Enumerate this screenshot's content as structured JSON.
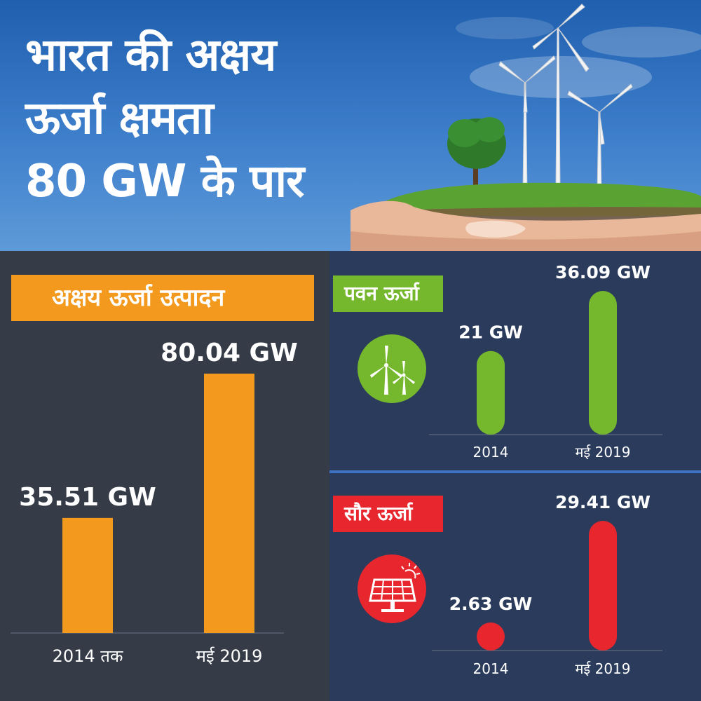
{
  "header": {
    "title_lines": [
      "भारत की अक्षय",
      "ऊर्जा क्षमता",
      "80 GW के पार"
    ]
  },
  "colors": {
    "total": "#f39a1e",
    "wind": "#75b82d",
    "solar": "#e8262e",
    "left_bg": "#353b47",
    "right_bg": "#2a3b5c"
  },
  "icons": {
    "wind": "wind-turbine-icon",
    "solar": "solar-panel-icon"
  },
  "chart_data": [
    {
      "type": "bar",
      "title": "अक्षय ऊर्जा उत्पादन",
      "categories": [
        "2014 तक",
        "मई 2019"
      ],
      "values": [
        35.51,
        80.04
      ],
      "value_labels": [
        "35.51 GW",
        "80.04 GW"
      ],
      "unit": "GW",
      "color": "#f39a1e"
    },
    {
      "type": "bar",
      "title": "पवन ऊर्जा",
      "categories": [
        "2014",
        "मई 2019"
      ],
      "values": [
        21,
        36.09
      ],
      "value_labels": [
        "21 GW",
        "36.09 GW"
      ],
      "unit": "GW",
      "color": "#75b82d"
    },
    {
      "type": "bar",
      "title": "सौर ऊर्जा",
      "categories": [
        "2014",
        "मई 2019"
      ],
      "values": [
        2.63,
        29.41
      ],
      "value_labels": [
        "2.63 GW",
        "29.41 GW"
      ],
      "unit": "GW",
      "color": "#e8262e"
    }
  ]
}
